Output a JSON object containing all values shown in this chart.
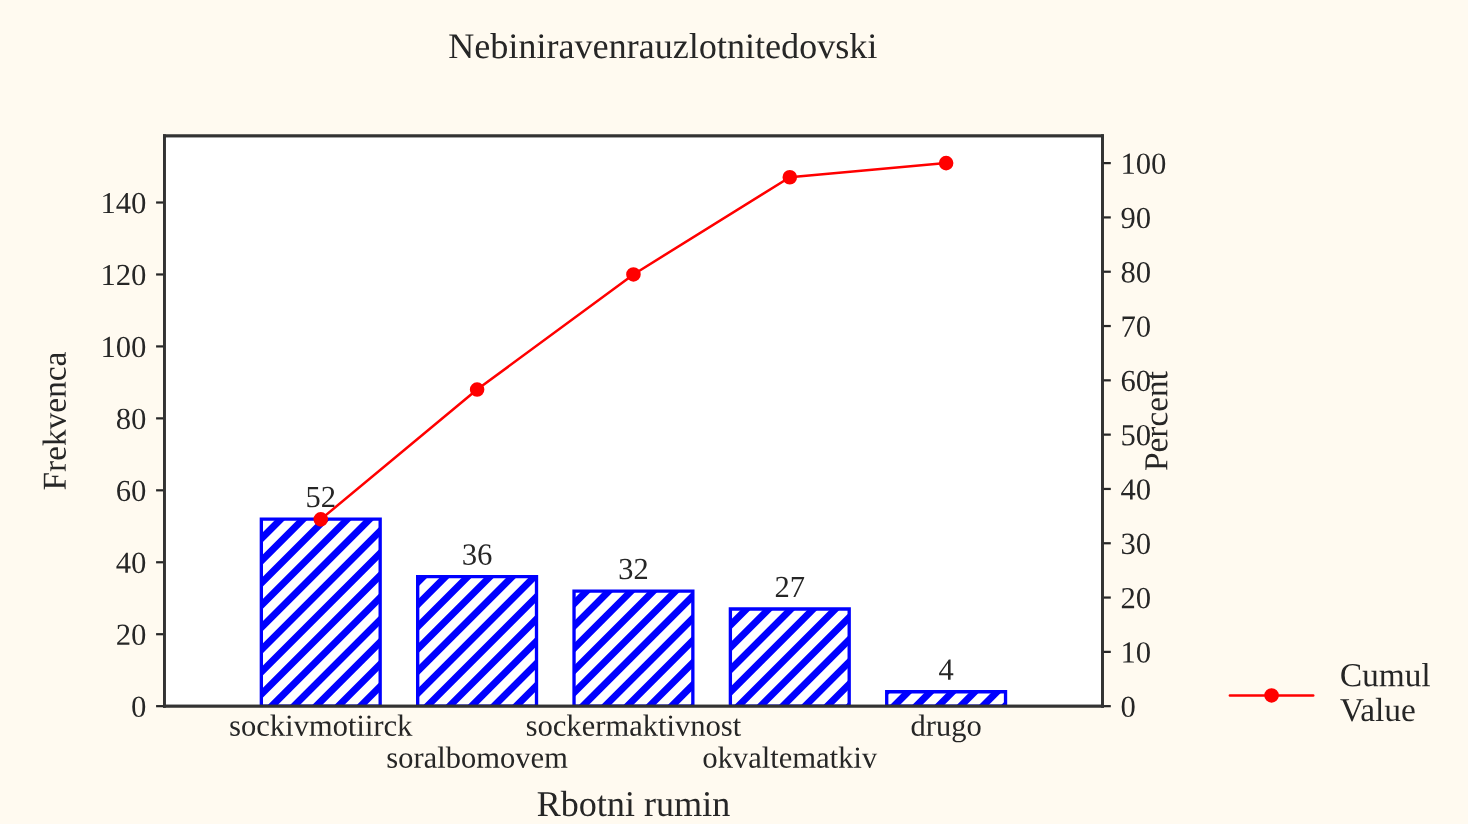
{
  "chart_data": {
    "type": "bar",
    "title": "Nebiniravenrauzlotnitedovski",
    "xlabel": "Rbotni rumin",
    "ylabel": "Frekvenca",
    "y2label": "Percent",
    "categories": [
      "sockivmotiirck",
      "soralbomovem",
      "sockermaktivnost",
      "okvaltematkiv",
      "drugo"
    ],
    "series": [
      {
        "color": "#0000ff",
        "values": [
          52,
          36,
          32,
          27,
          4
        ],
        "value_labels": [
          "52",
          "36",
          "32",
          "27",
          "4"
        ]
      },
      {
        "type": "line",
        "name": "Cumul\nValue",
        "color": "#ff0000",
        "axis": "y2",
        "marker": "circle",
        "values": [
          34.4,
          58.3,
          79.5,
          97.4,
          100
        ]
      }
    ],
    "ylim": [
      0,
      158.5
    ],
    "yticks": [
      0,
      20,
      40,
      60,
      80,
      100,
      120,
      140
    ],
    "y2lim": [
      0,
      105
    ],
    "y2ticks": [
      0,
      10,
      20,
      30,
      40,
      50,
      60,
      70,
      80,
      90,
      100
    ],
    "legend": "bottom right"
  }
}
